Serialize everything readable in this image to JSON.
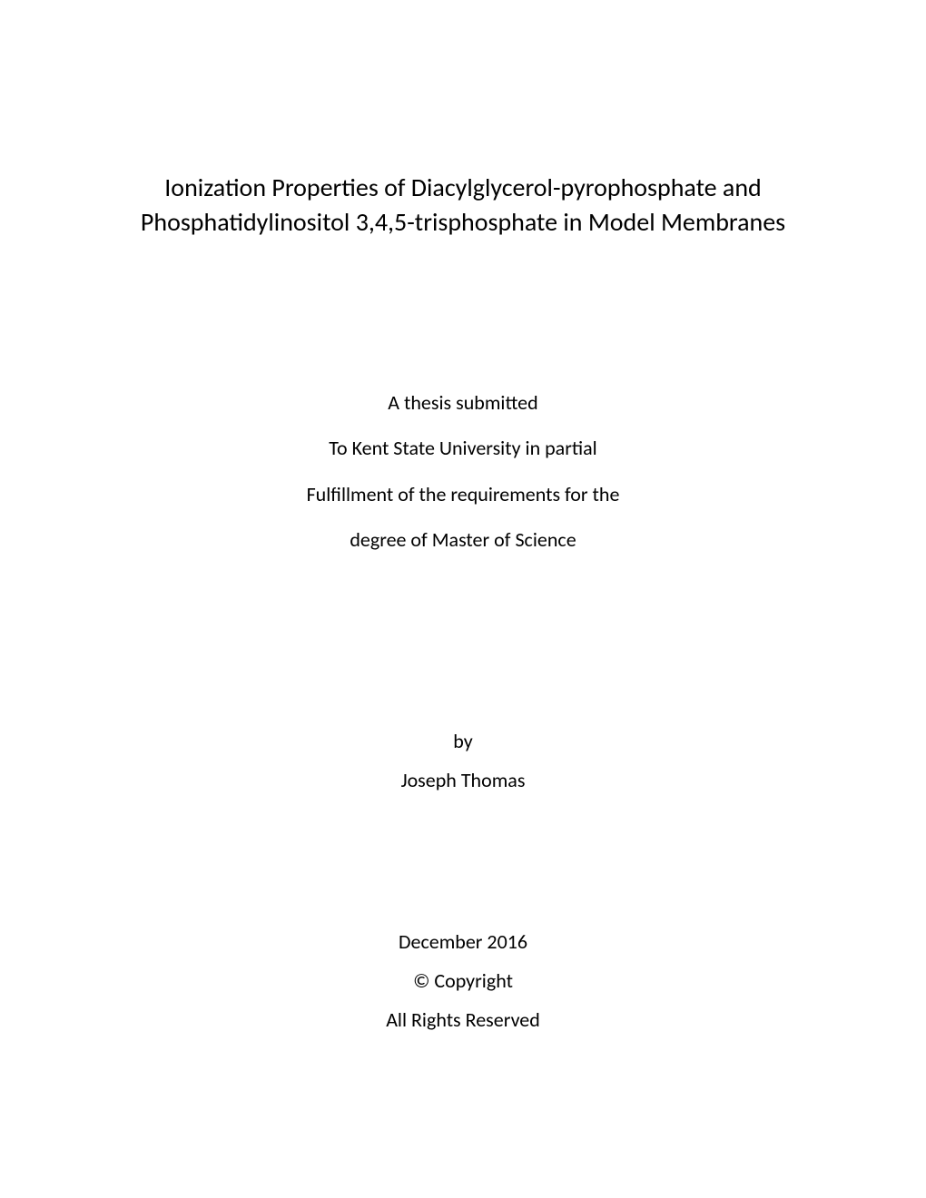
{
  "title": {
    "line1": "Ionization Properties of Diacylglycerol-pyrophosphate and",
    "line2": "Phosphatidylinositol 3,4,5-trisphosphate in Model Membranes"
  },
  "submission": {
    "line1": "A thesis submitted",
    "line2": "To Kent State University in partial",
    "line3": "Fulfillment of the requirements for the",
    "line4": "degree of Master of Science"
  },
  "author": {
    "by": "by",
    "name": "Joseph Thomas"
  },
  "footer": {
    "date": "December 2016",
    "copyright": "© Copyright",
    "rights": "All Rights Reserved"
  },
  "styling": {
    "background_color": "#ffffff",
    "text_color": "#000000",
    "title_fontsize": 28,
    "body_fontsize": 22,
    "font_family": "Calibri"
  }
}
